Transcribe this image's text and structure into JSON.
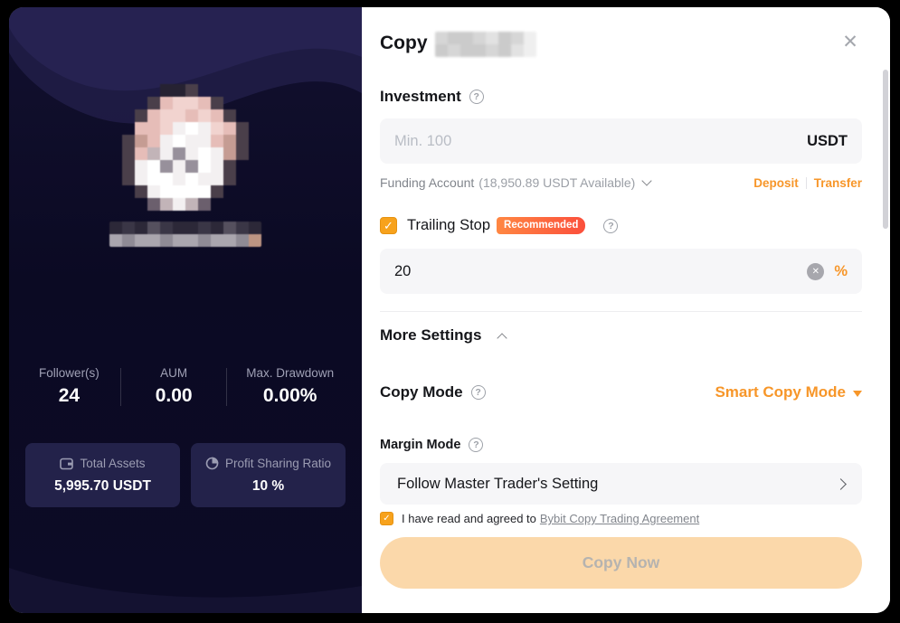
{
  "modal": {
    "title": "Copy"
  },
  "icons": {
    "close": "✕",
    "check": "✓",
    "clear": "✕",
    "question": "?"
  },
  "left_panel": {
    "stats": [
      {
        "label": "Follower(s)",
        "value": "24"
      },
      {
        "label": "AUM",
        "value": "0.00"
      },
      {
        "label": "Max. Drawdown",
        "value": "0.00%"
      }
    ],
    "cards": [
      {
        "label": "Total Assets",
        "value": "5,995.70 USDT"
      },
      {
        "label": "Profit Sharing Ratio",
        "value": "10 %"
      }
    ]
  },
  "investment": {
    "label": "Investment",
    "placeholder": "Min. 100",
    "currency": "USDT",
    "funding_account": "Funding Account",
    "available": "(18,950.89 USDT Available)",
    "deposit": "Deposit",
    "transfer": "Transfer"
  },
  "trailing_stop": {
    "label": "Trailing Stop",
    "badge": "Recommended",
    "value": "20",
    "unit": "%"
  },
  "more_settings": {
    "label": "More Settings"
  },
  "copy_mode": {
    "label": "Copy Mode",
    "value": "Smart Copy Mode"
  },
  "margin_mode": {
    "label": "Margin Mode",
    "value": "Follow Master Trader's Setting"
  },
  "agreement": {
    "text": "I have read and agreed to",
    "link": "Bybit Copy Trading Agreement"
  },
  "copy_now": {
    "label": "Copy Now"
  },
  "colors": {
    "accent_orange": "#f79629",
    "checkbox_orange": "#f7a21c",
    "badge_gradient": [
      "#ff8742",
      "#fb4f3c"
    ],
    "disabled_button_bg": "#fbd8aa",
    "left_panel_bg": "#0c0b26"
  }
}
